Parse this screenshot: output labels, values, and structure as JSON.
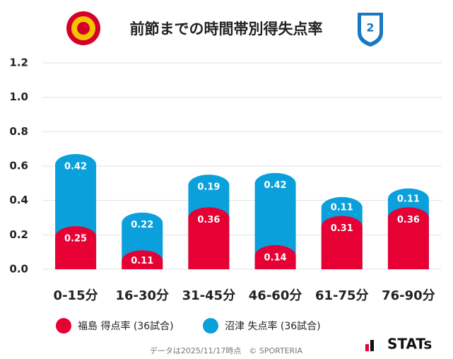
{
  "chart_data": {
    "type": "stacked_bar",
    "title": "前節までの時間帯別得失点率",
    "categories": [
      "0-15分",
      "16-30分",
      "31-45分",
      "46-60分",
      "61-75分",
      "76-90分"
    ],
    "series": [
      {
        "name": "福島 得点率 (36試合)",
        "color": "#e60033",
        "values": [
          0.25,
          0.11,
          0.36,
          0.14,
          0.31,
          0.36
        ]
      },
      {
        "name": "沼津 失点率 (36試合)",
        "color": "#0aa0dc",
        "values": [
          0.42,
          0.22,
          0.19,
          0.42,
          0.11,
          0.11
        ]
      }
    ],
    "ylim": [
      0,
      1.2
    ],
    "yticks": [
      {
        "value": 0,
        "label": "0.0"
      },
      0.2,
      0.4,
      0.6,
      0.8,
      {
        "value": 1,
        "label": "1.0"
      },
      1.2
    ],
    "grid": true,
    "footer": "データは2025/11/17時点　© SPORTERIA",
    "brand": "STATs"
  }
}
